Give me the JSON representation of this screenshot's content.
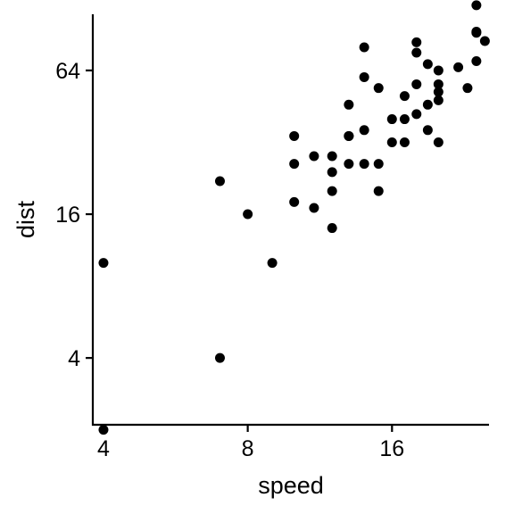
{
  "chart_data": {
    "type": "scatter",
    "title": "",
    "xlabel": "speed",
    "ylabel": "dist",
    "x_scale": "log2",
    "y_scale": "log2",
    "xlim": [
      3.8,
      25.5
    ],
    "ylim": [
      2.1,
      110
    ],
    "x_ticks": [
      4,
      8,
      16
    ],
    "y_ticks": [
      4,
      16,
      64
    ],
    "x_tick_labels": [
      "4",
      "8",
      "16"
    ],
    "y_tick_labels": [
      "4",
      "16",
      "64"
    ],
    "grid": false,
    "legend": "none",
    "point_color": "#000000",
    "points": [
      {
        "x": 4,
        "y": 2
      },
      {
        "x": 4,
        "y": 10
      },
      {
        "x": 7,
        "y": 4
      },
      {
        "x": 7,
        "y": 22
      },
      {
        "x": 8,
        "y": 16
      },
      {
        "x": 9,
        "y": 10
      },
      {
        "x": 10,
        "y": 18
      },
      {
        "x": 10,
        "y": 26
      },
      {
        "x": 10,
        "y": 34
      },
      {
        "x": 11,
        "y": 17
      },
      {
        "x": 11,
        "y": 28
      },
      {
        "x": 12,
        "y": 14
      },
      {
        "x": 12,
        "y": 20
      },
      {
        "x": 12,
        "y": 24
      },
      {
        "x": 12,
        "y": 28
      },
      {
        "x": 13,
        "y": 26
      },
      {
        "x": 13,
        "y": 34
      },
      {
        "x": 13,
        "y": 34
      },
      {
        "x": 13,
        "y": 46
      },
      {
        "x": 14,
        "y": 26
      },
      {
        "x": 14,
        "y": 36
      },
      {
        "x": 14,
        "y": 60
      },
      {
        "x": 14,
        "y": 80
      },
      {
        "x": 15,
        "y": 20
      },
      {
        "x": 15,
        "y": 26
      },
      {
        "x": 15,
        "y": 54
      },
      {
        "x": 16,
        "y": 32
      },
      {
        "x": 16,
        "y": 40
      },
      {
        "x": 17,
        "y": 32
      },
      {
        "x": 17,
        "y": 40
      },
      {
        "x": 17,
        "y": 50
      },
      {
        "x": 18,
        "y": 42
      },
      {
        "x": 18,
        "y": 56
      },
      {
        "x": 18,
        "y": 76
      },
      {
        "x": 18,
        "y": 84
      },
      {
        "x": 19,
        "y": 36
      },
      {
        "x": 19,
        "y": 46
      },
      {
        "x": 19,
        "y": 68
      },
      {
        "x": 20,
        "y": 32
      },
      {
        "x": 20,
        "y": 48
      },
      {
        "x": 20,
        "y": 52
      },
      {
        "x": 20,
        "y": 56
      },
      {
        "x": 20,
        "y": 64
      },
      {
        "x": 22,
        "y": 66
      },
      {
        "x": 23,
        "y": 54
      },
      {
        "x": 24,
        "y": 70
      },
      {
        "x": 24,
        "y": 92
      },
      {
        "x": 24,
        "y": 93
      },
      {
        "x": 24,
        "y": 120
      },
      {
        "x": 25,
        "y": 85
      }
    ]
  }
}
